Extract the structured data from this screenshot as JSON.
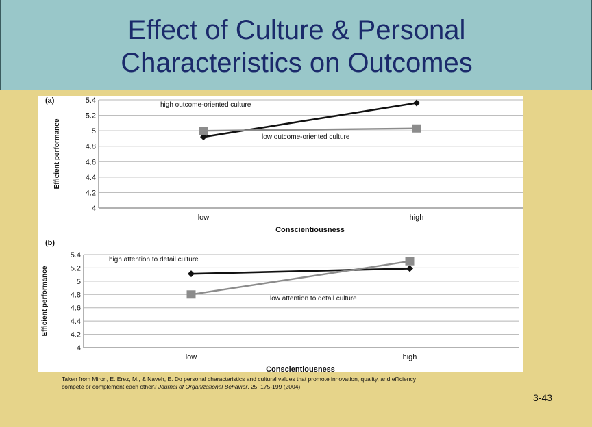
{
  "slide": {
    "title_line1": "Effect of Culture & Personal",
    "title_line2": "Characteristics on Outcomes",
    "citation_line1": "Taken from Miron, E. Erez, M., & Naveh, E.  Do personal characteristics and cultural values that promote innovation, quality, and efficiency",
    "citation_line2_a": "compete or complement each other? ",
    "citation_line2_journal": "Journal of Organizational Behavior",
    "citation_line2_b": ", 25, 175-199 (2004).",
    "page_number": "3-43"
  },
  "colors": {
    "background": "#e6d48a",
    "title_bar": "#99c7c9",
    "title_text": "#1b2a6b",
    "high_series": "#111111",
    "low_series": "#8c8c8c"
  },
  "chart_data": [
    {
      "type": "line",
      "panel_label": "(a)",
      "categories": [
        "low",
        "high"
      ],
      "xlabel": "Conscientiousness",
      "ylabel": "Efficient performance",
      "ylim": [
        4,
        5.4
      ],
      "yticks": [
        "5.4",
        "5.2",
        "5",
        "4.8",
        "4.6",
        "4.4",
        "4.2",
        "4"
      ],
      "grid": true,
      "series": [
        {
          "name": "high  outcome-oriented culture",
          "values": [
            4.92,
            5.36
          ],
          "marker": "diamond"
        },
        {
          "name": "low  outcome-oriented culture",
          "values": [
            5.0,
            5.03
          ],
          "marker": "square"
        }
      ]
    },
    {
      "type": "line",
      "panel_label": "(b)",
      "categories": [
        "low",
        "high"
      ],
      "xlabel": "Conscientiousness",
      "ylabel": "Efficient performance",
      "ylim": [
        4,
        5.4
      ],
      "yticks": [
        "5.4",
        "5.2",
        "5",
        "4.8",
        "4.6",
        "4.4",
        "4.2",
        "4"
      ],
      "grid": true,
      "series": [
        {
          "name": "high  attention to detail culture",
          "values": [
            5.11,
            5.19
          ],
          "marker": "diamond"
        },
        {
          "name": "low  attention to detail culture",
          "values": [
            4.8,
            5.3
          ],
          "marker": "square"
        }
      ]
    }
  ]
}
